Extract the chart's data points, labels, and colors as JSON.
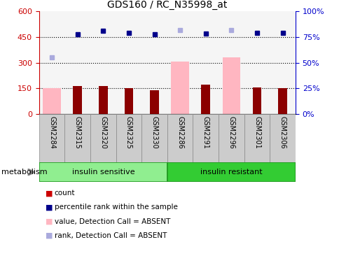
{
  "title": "GDS160 / RC_N35998_at",
  "samples": [
    "GSM2284",
    "GSM2315",
    "GSM2320",
    "GSM2325",
    "GSM2330",
    "GSM2286",
    "GSM2291",
    "GSM2296",
    "GSM2301",
    "GSM2306"
  ],
  "groups": [
    {
      "label": "insulin sensitive",
      "color": "#90EE90",
      "n": 5
    },
    {
      "label": "insulin resistant",
      "color": "#00CC00",
      "n": 5
    }
  ],
  "count_values": [
    null,
    163,
    163,
    152,
    140,
    null,
    170,
    null,
    157,
    152
  ],
  "pink_bar_values": [
    150,
    null,
    null,
    null,
    null,
    307,
    null,
    330,
    null,
    null
  ],
  "blue_dot_values": [
    null,
    467,
    487,
    475,
    465,
    null,
    470,
    null,
    475,
    475
  ],
  "light_purple_dot_values": [
    330,
    null,
    null,
    null,
    null,
    490,
    null,
    490,
    null,
    null
  ],
  "ylim_left": [
    0,
    600
  ],
  "ylim_right": [
    0,
    100
  ],
  "yticks_left": [
    0,
    150,
    300,
    450,
    600
  ],
  "yticks_right": [
    0,
    25,
    50,
    75,
    100
  ],
  "ytick_labels_right": [
    "0%",
    "25%",
    "50%",
    "75%",
    "100%"
  ],
  "left_tick_color": "#CC0000",
  "right_tick_color": "#0000CC",
  "pink_bar_color": "#FFB6C1",
  "count_bar_color": "#8B0000",
  "blue_dot_color": "#00008B",
  "light_purple_color": "#AAAADD",
  "plot_bg_color": "#F5F5F5",
  "xlabel_bg_color": "#CCCCCC",
  "legend_items": [
    {
      "label": "count",
      "color": "#CC0000"
    },
    {
      "label": "percentile rank within the sample",
      "color": "#00008B"
    },
    {
      "label": "value, Detection Call = ABSENT",
      "color": "#FFB6C1"
    },
    {
      "label": "rank, Detection Call = ABSENT",
      "color": "#AAAADD"
    }
  ],
  "metabolism_label": "metabolism",
  "figsize": [
    4.85,
    3.66
  ],
  "dpi": 100
}
